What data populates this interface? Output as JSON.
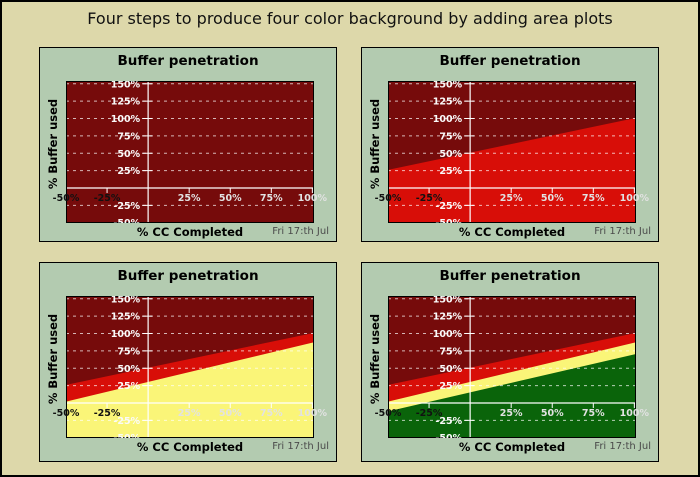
{
  "page": {
    "title": "Four steps to produce four color background by adding area plots",
    "background_color": "#ddd8aa",
    "border_color": "#000000"
  },
  "chart_data": {
    "type": "area",
    "description": "Same chart repeated four times, each step adding one more colored area layer as background",
    "labels": {
      "chart_title": "Buffer penetration",
      "y_axis": "% Buffer used",
      "x_axis": "% CC Completed",
      "footer": "Fri 17:th Jul"
    },
    "axes": {
      "xlim": [
        -50,
        101
      ],
      "ylim": [
        -50.4,
        154
      ],
      "x_ticks": [
        {
          "value": -50,
          "label": "-50%"
        },
        {
          "value": -25,
          "label": "-25%"
        },
        {
          "value": 25,
          "label": "25%"
        },
        {
          "value": 50,
          "label": "50%"
        },
        {
          "value": 75,
          "label": "75%"
        },
        {
          "value": 100,
          "label": "100%"
        }
      ],
      "y_ticks": [
        {
          "value": 150,
          "label": "150%"
        },
        {
          "value": 125,
          "label": "125%"
        },
        {
          "value": 100,
          "label": "100%"
        },
        {
          "value": 75,
          "label": "75%"
        },
        {
          "value": 50,
          "label": "50%"
        },
        {
          "value": 25,
          "label": "25%"
        },
        {
          "value": -25,
          "label": "-25%"
        },
        {
          "value": -50,
          "label": "-50%"
        }
      ],
      "grid_values": [
        150,
        125,
        100,
        75,
        50,
        25,
        -25
      ],
      "x_tick_mark_values": [
        -25,
        25,
        50,
        75,
        100
      ],
      "grid_on": true
    },
    "layers": {
      "darkred": {
        "color": "#760b0b",
        "region": "full-background"
      },
      "red": {
        "color": "#d80e08",
        "line": {
          "x": [
            -50,
            101
          ],
          "y": [
            26,
            101
          ]
        }
      },
      "yellow": {
        "color": "#faf578",
        "line": {
          "x": [
            -50,
            101
          ],
          "y": [
            2,
            87.5
          ]
        }
      },
      "green": {
        "color": "#0a640a",
        "line": {
          "x": [
            -50,
            101
          ],
          "y": [
            -12,
            70.5
          ]
        }
      }
    },
    "charts": [
      {
        "step": 1,
        "title": "Buffer penetration",
        "layers": [
          "darkred"
        ]
      },
      {
        "step": 2,
        "title": "Buffer penetration",
        "layers": [
          "darkred",
          "red"
        ]
      },
      {
        "step": 3,
        "title": "Buffer penetration",
        "layers": [
          "darkred",
          "red",
          "yellow"
        ]
      },
      {
        "step": 4,
        "title": "Buffer penetration",
        "layers": [
          "darkred",
          "red",
          "yellow",
          "green"
        ]
      }
    ],
    "style": {
      "panel_background": "#b3cbb0",
      "plot_border_color": "#000000",
      "axis_color": "#ffffff",
      "grid_color": "#ffffff",
      "y_tick_label_color": "#fafafa",
      "x_tick_label_color_positive": "#e2e2e2",
      "x_tick_label_color_negative": "#111111",
      "footer_color": "#4a4a4a"
    }
  }
}
